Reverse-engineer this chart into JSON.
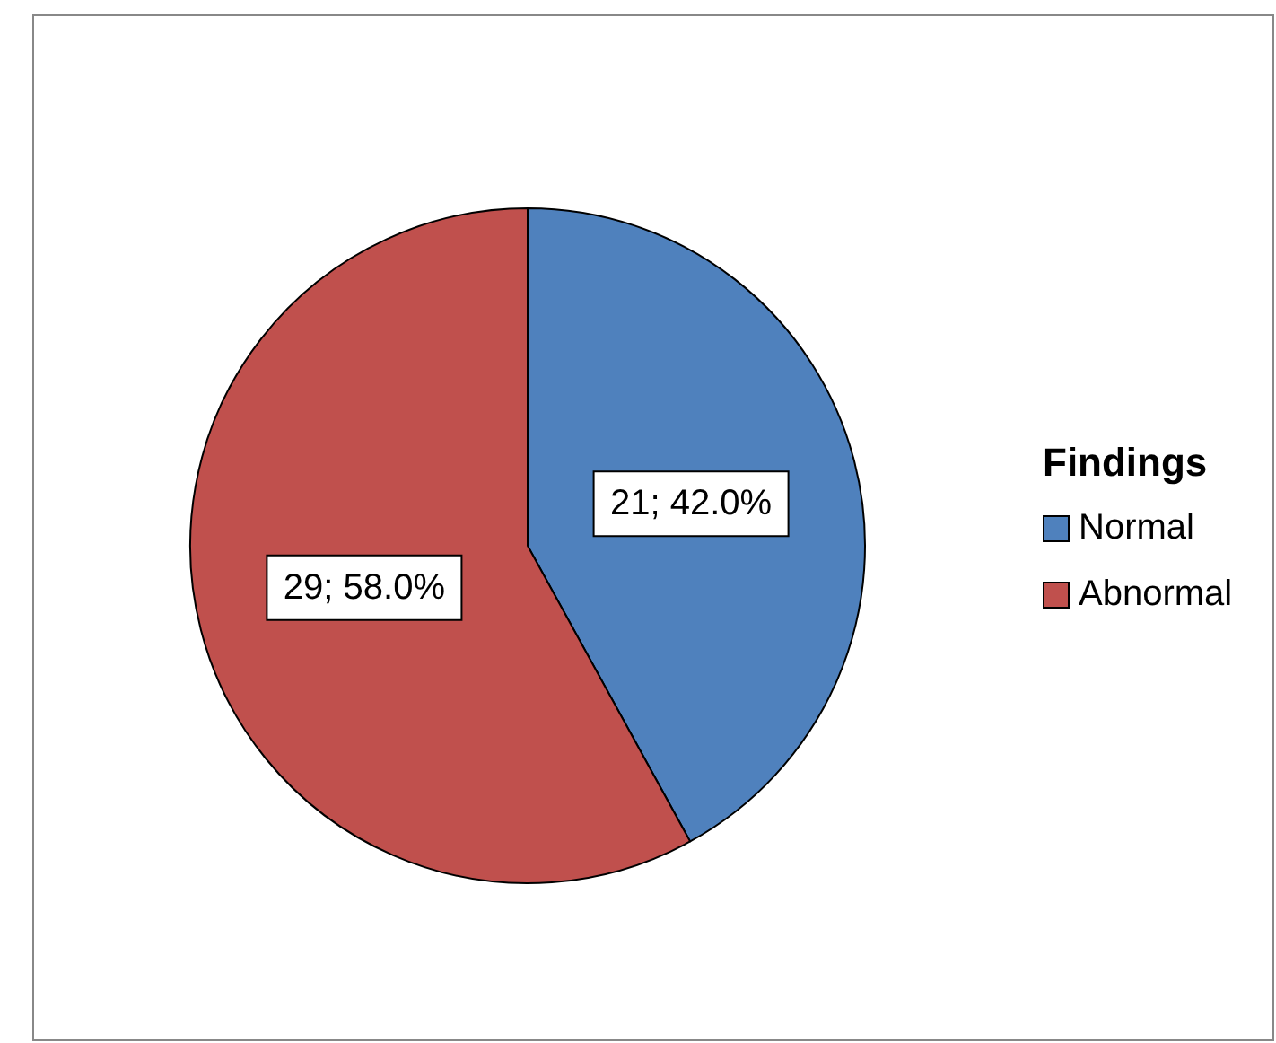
{
  "chart_data": {
    "type": "pie",
    "legend_title": "Findings",
    "categories": [
      "Normal",
      "Abnormal"
    ],
    "values": [
      42.0,
      58.0
    ],
    "colors": [
      "#4f81bd",
      "#c0504d"
    ],
    "value_labels": [
      "21; 42.0%",
      "29; 58.0%"
    ],
    "legend": "right"
  }
}
